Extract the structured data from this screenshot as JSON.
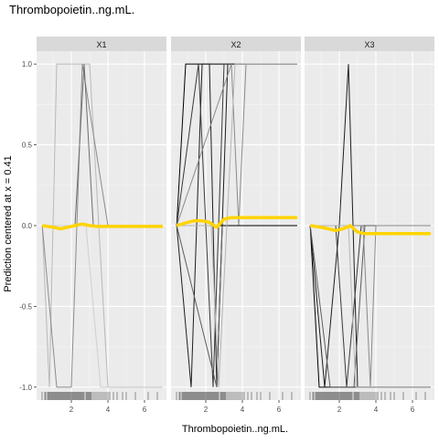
{
  "chart_data": {
    "type": "line",
    "title": "Thrombopoietin..ng.mL.",
    "xlabel": "Thrombopoietin..ng.mL.",
    "ylabel": "Prediction centered at x = 0.41",
    "xlim": [
      0.1,
      7.2
    ],
    "ylim": [
      -1.08,
      1.08
    ],
    "x_ticks": [
      2,
      4,
      6
    ],
    "x_tick_labels": [
      "2",
      "4",
      "6"
    ],
    "y_ticks": [
      -1.0,
      -0.5,
      0.0,
      0.5,
      1.0
    ],
    "y_tick_labels": [
      "-1.0",
      "-0.5",
      "0.0",
      "0.5",
      "1.0"
    ],
    "grid": true,
    "rug": [
      0.4,
      0.55,
      0.6,
      0.7,
      0.75,
      0.8,
      0.85,
      0.9,
      0.95,
      1.0,
      1.05,
      1.1,
      1.15,
      1.2,
      1.25,
      1.3,
      1.35,
      1.4,
      1.45,
      1.5,
      1.55,
      1.6,
      1.65,
      1.7,
      1.75,
      1.8,
      1.85,
      1.9,
      1.95,
      2.0,
      2.05,
      2.1,
      2.15,
      2.2,
      2.25,
      2.3,
      2.35,
      2.4,
      2.45,
      2.5,
      2.55,
      2.6,
      2.65,
      2.7,
      2.8,
      2.85,
      2.9,
      2.95,
      3.0,
      3.05,
      3.1,
      3.2,
      3.3,
      3.4,
      3.5,
      3.6,
      3.7,
      3.8,
      3.9,
      4.0,
      4.1,
      4.3,
      4.5,
      4.8,
      5.0,
      5.5,
      6.2,
      6.7
    ],
    "panels": [
      {
        "strip": "X1",
        "ice_lines": [
          {
            "color": "#b8b8b8",
            "x": [
              0.41,
              0.8,
              1.2,
              1.8,
              3.0,
              4.0,
              7.0
            ],
            "y": [
              0,
              -1,
              1,
              1,
              1,
              -1,
              -1
            ]
          },
          {
            "color": "#8c8c8c",
            "x": [
              0.41,
              1.2,
              2.0,
              2.6,
              4.0,
              7.0
            ],
            "y": [
              0,
              -1,
              -1,
              1,
              0,
              0
            ]
          },
          {
            "color": "#6e6e6e",
            "x": [
              0.41,
              2.2,
              2.7,
              3.2,
              7.0
            ],
            "y": [
              0,
              0,
              1,
              0,
              0
            ]
          },
          {
            "color": "#a0a0a0",
            "x": [
              0.41,
              7.0
            ],
            "y": [
              0,
              0
            ]
          },
          {
            "color": "#cfcfcf",
            "x": [
              0.41,
              2.8,
              3.6,
              4.2,
              7.0
            ],
            "y": [
              0,
              0,
              -1,
              -1,
              -1
            ]
          }
        ],
        "pdp": {
          "color": "#FFD400",
          "x": [
            0.41,
            1.0,
            1.4,
            1.8,
            2.2,
            2.6,
            3.0,
            3.4,
            4.0,
            5.0,
            6.0,
            7.0
          ],
          "y": [
            0,
            -0.01,
            -0.02,
            -0.01,
            0.0,
            0.01,
            0.0,
            -0.005,
            -0.005,
            -0.005,
            -0.005,
            -0.005
          ]
        }
      },
      {
        "strip": "X2",
        "ice_lines": [
          {
            "color": "#000000",
            "x": [
              0.41,
              0.9,
              7.0
            ],
            "y": [
              0,
              1,
              1
            ]
          },
          {
            "color": "#1e1e1e",
            "x": [
              0.41,
              1.2,
              1.8,
              2.2,
              2.6,
              3.2,
              7.0
            ],
            "y": [
              0,
              -1,
              1,
              1,
              -1,
              1,
              1
            ]
          },
          {
            "color": "#3a3a3a",
            "x": [
              0.41,
              1.6,
              2.4,
              3.0,
              4.0,
              7.0
            ],
            "y": [
              0,
              1,
              -1,
              1,
              1,
              1
            ]
          },
          {
            "color": "#5c5c5c",
            "x": [
              0.41,
              2.6,
              2.9,
              7.0
            ],
            "y": [
              0,
              -1,
              0,
              0
            ]
          },
          {
            "color": "#8a8a8a",
            "x": [
              0.41,
              3.4,
              3.8,
              4.2,
              7.0
            ],
            "y": [
              0,
              1,
              0,
              1,
              1
            ]
          },
          {
            "color": "#000000",
            "x": [
              0.41,
              7.0
            ],
            "y": [
              0,
              0
            ]
          },
          {
            "color": "#b5b5b5",
            "x": [
              0.41,
              2.3,
              2.7,
              3.6,
              7.0
            ],
            "y": [
              0,
              0,
              -1,
              1,
              1
            ]
          }
        ],
        "pdp": {
          "color": "#FFD400",
          "x": [
            0.41,
            1.0,
            1.4,
            1.8,
            2.2,
            2.6,
            3.0,
            3.4,
            4.0,
            5.0,
            6.0,
            7.0
          ],
          "y": [
            0,
            0.02,
            0.03,
            0.03,
            0.02,
            -0.01,
            0.04,
            0.05,
            0.05,
            0.05,
            0.05,
            0.05
          ]
        }
      },
      {
        "strip": "X3",
        "ice_lines": [
          {
            "color": "#000000",
            "x": [
              0.41,
              7.0
            ],
            "y": [
              0,
              0
            ]
          },
          {
            "color": "#000000",
            "x": [
              0.41,
              0.9,
              7.0
            ],
            "y": [
              0,
              -1,
              -1
            ]
          },
          {
            "color": "#1e1e1e",
            "x": [
              0.41,
              1.2,
              2.0,
              2.5,
              3.0,
              7.0
            ],
            "y": [
              0,
              -1,
              0,
              1,
              -1,
              -1
            ]
          },
          {
            "color": "#3a3a3a",
            "x": [
              0.41,
              1.8,
              2.4,
              3.2,
              7.0
            ],
            "y": [
              0,
              0,
              -1,
              0,
              0
            ]
          },
          {
            "color": "#5c5c5c",
            "x": [
              0.41,
              1.5,
              2.8,
              3.4,
              7.0
            ],
            "y": [
              0,
              -1,
              -1,
              0,
              0
            ]
          },
          {
            "color": "#8a8a8a",
            "x": [
              0.41,
              3.3,
              3.7,
              4.0,
              7.0
            ],
            "y": [
              0,
              0,
              -1,
              0,
              0
            ]
          },
          {
            "color": "#b5b5b5",
            "x": [
              0.41,
              2.5,
              2.9,
              3.3,
              7.0
            ],
            "y": [
              0,
              0,
              -1,
              -1,
              -1
            ]
          }
        ],
        "pdp": {
          "color": "#FFD400",
          "x": [
            0.41,
            1.0,
            1.4,
            1.8,
            2.2,
            2.6,
            3.0,
            3.4,
            4.0,
            5.0,
            6.0,
            7.0
          ],
          "y": [
            0,
            -0.01,
            -0.02,
            -0.03,
            -0.02,
            0.0,
            -0.04,
            -0.05,
            -0.05,
            -0.05,
            -0.05,
            -0.05
          ]
        }
      }
    ]
  }
}
